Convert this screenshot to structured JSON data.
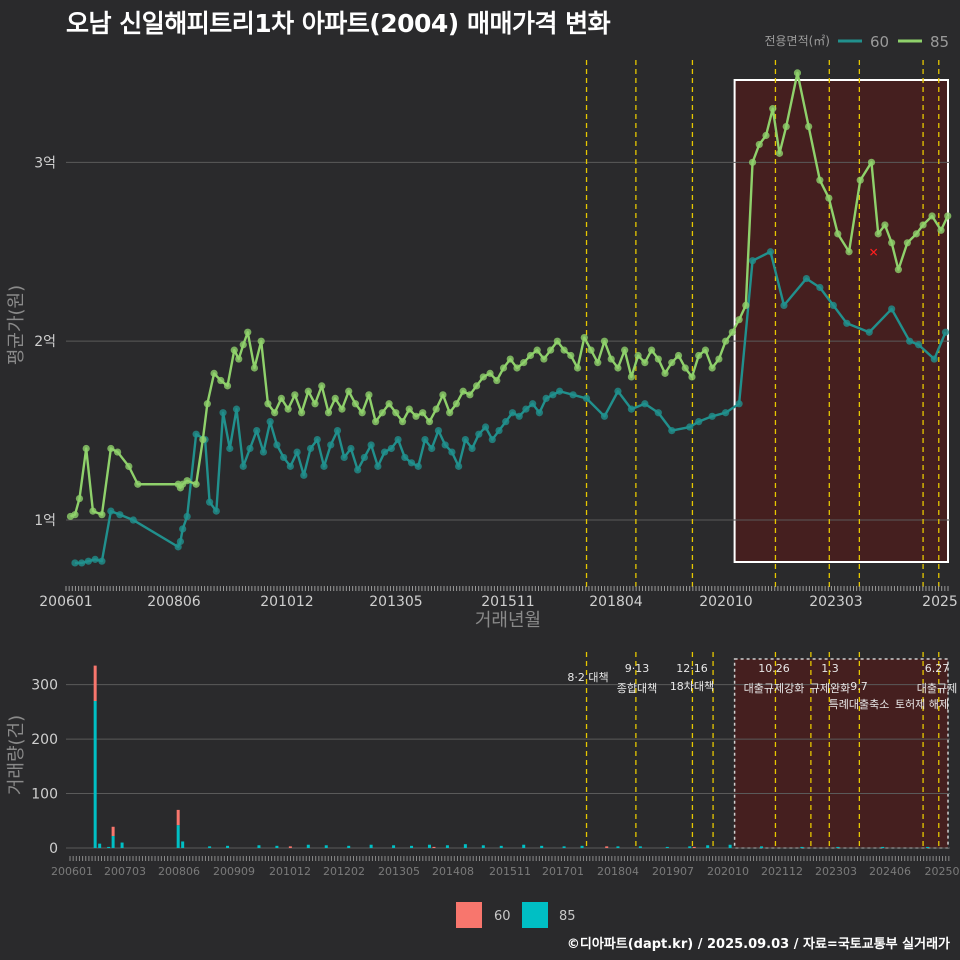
{
  "title": "오남 신일해피트리1차 아파트(2004) 매매가격 변화",
  "footer": "©디아파트(dapt.kr) / 2025.09.03 / 자료=국토교통부 실거래가",
  "colors": {
    "background": "#2a2a2c",
    "series60": "#21908d",
    "series85": "#8fd16b",
    "bar60": "#f8766d",
    "bar85": "#00bfc4",
    "policy": "#e6c700",
    "highlightFill": "#4a1d1d",
    "grid": "#5a5a5a",
    "axisText": "#cfcfcf",
    "marker": "#ff1e1e"
  },
  "chart_data": [
    {
      "type": "line",
      "title": "오남 신일해피트리1차 아파트(2004) 매매가격 변화",
      "xlabel": "거래년월",
      "ylabel": "평균가(원)",
      "x_tick_labels": [
        "200601",
        "200806",
        "201012",
        "201305",
        "201511",
        "201804",
        "202010",
        "202303",
        "2025"
      ],
      "y_tick_labels": [
        "1억",
        "2억",
        "3억"
      ],
      "y_ticks": [
        1,
        2,
        3
      ],
      "ylim": [
        0.62,
        3.6
      ],
      "xlim": [
        2006.0,
        2025.7
      ],
      "legend_title": "전용면적(㎡)",
      "legend": [
        "60",
        "85"
      ],
      "policy_dates": [
        2017.6,
        2018.7,
        2019.96,
        2021.81,
        2023.01,
        2023.68,
        2025.1,
        2025.45
      ],
      "highlight_range": [
        2020.9,
        2025.7
      ],
      "marker_point": [
        2024.0,
        2.5
      ],
      "series": [
        {
          "name": "60",
          "x": [
            2006.2,
            2006.35,
            2006.5,
            2006.65,
            2006.8,
            2007.0,
            2007.2,
            2007.5,
            2008.5,
            2008.55,
            2008.6,
            2008.7,
            2008.9,
            2009.1,
            2009.2,
            2009.35,
            2009.5,
            2009.65,
            2009.8,
            2009.95,
            2010.1,
            2010.25,
            2010.4,
            2010.55,
            2010.7,
            2010.85,
            2011.0,
            2011.15,
            2011.3,
            2011.45,
            2011.6,
            2011.75,
            2011.9,
            2012.05,
            2012.2,
            2012.35,
            2012.5,
            2012.65,
            2012.8,
            2012.95,
            2013.1,
            2013.25,
            2013.4,
            2013.55,
            2013.7,
            2013.85,
            2014.0,
            2014.15,
            2014.3,
            2014.45,
            2014.6,
            2014.75,
            2014.9,
            2015.05,
            2015.2,
            2015.35,
            2015.5,
            2015.65,
            2015.8,
            2015.95,
            2016.1,
            2016.25,
            2016.4,
            2016.55,
            2016.7,
            2016.85,
            2017.0,
            2017.3,
            2017.6,
            2018.0,
            2018.3,
            2018.6,
            2018.9,
            2019.2,
            2019.5,
            2019.9,
            2020.1,
            2020.4,
            2020.7,
            2021.0,
            2021.3,
            2021.7,
            2022.0,
            2022.5,
            2022.8,
            2023.1,
            2023.4,
            2023.9,
            2024.4,
            2024.8,
            2025.0,
            2025.35,
            2025.6
          ],
          "values": [
            0.76,
            0.76,
            0.77,
            0.78,
            0.77,
            1.05,
            1.03,
            1.0,
            0.85,
            0.88,
            0.95,
            1.02,
            1.48,
            1.45,
            1.1,
            1.05,
            1.6,
            1.4,
            1.62,
            1.3,
            1.4,
            1.5,
            1.38,
            1.55,
            1.42,
            1.35,
            1.3,
            1.38,
            1.25,
            1.4,
            1.45,
            1.3,
            1.42,
            1.5,
            1.35,
            1.4,
            1.28,
            1.35,
            1.42,
            1.3,
            1.38,
            1.4,
            1.45,
            1.35,
            1.32,
            1.3,
            1.45,
            1.4,
            1.5,
            1.42,
            1.38,
            1.3,
            1.45,
            1.4,
            1.48,
            1.52,
            1.45,
            1.5,
            1.55,
            1.6,
            1.58,
            1.62,
            1.65,
            1.6,
            1.68,
            1.7,
            1.72,
            1.7,
            1.68,
            1.58,
            1.72,
            1.62,
            1.65,
            1.6,
            1.5,
            1.52,
            1.55,
            1.58,
            1.6,
            1.65,
            2.45,
            2.5,
            2.2,
            2.35,
            2.3,
            2.2,
            2.1,
            2.05,
            2.18,
            2.0,
            1.98,
            1.9,
            2.05
          ]
        },
        {
          "name": "85",
          "x": [
            2006.1,
            2006.2,
            2006.3,
            2006.45,
            2006.6,
            2006.8,
            2007.0,
            2007.15,
            2007.4,
            2007.6,
            2008.5,
            2008.55,
            2008.6,
            2008.7,
            2008.9,
            2009.05,
            2009.15,
            2009.3,
            2009.45,
            2009.6,
            2009.75,
            2009.85,
            2009.95,
            2010.05,
            2010.2,
            2010.35,
            2010.5,
            2010.65,
            2010.8,
            2010.95,
            2011.1,
            2011.25,
            2011.4,
            2011.55,
            2011.7,
            2011.85,
            2012.0,
            2012.15,
            2012.3,
            2012.45,
            2012.6,
            2012.75,
            2012.9,
            2013.05,
            2013.2,
            2013.35,
            2013.5,
            2013.65,
            2013.8,
            2013.95,
            2014.1,
            2014.25,
            2014.4,
            2014.55,
            2014.7,
            2014.85,
            2015.0,
            2015.15,
            2015.3,
            2015.45,
            2015.6,
            2015.75,
            2015.9,
            2016.05,
            2016.2,
            2016.35,
            2016.5,
            2016.65,
            2016.8,
            2016.95,
            2017.1,
            2017.25,
            2017.4,
            2017.55,
            2017.7,
            2017.85,
            2018.0,
            2018.15,
            2018.3,
            2018.45,
            2018.6,
            2018.75,
            2018.9,
            2019.05,
            2019.2,
            2019.35,
            2019.5,
            2019.65,
            2019.8,
            2019.95,
            2020.1,
            2020.25,
            2020.4,
            2020.55,
            2020.7,
            2020.85,
            2021.0,
            2021.15,
            2021.3,
            2021.45,
            2021.6,
            2021.75,
            2021.9,
            2022.05,
            2022.3,
            2022.55,
            2022.8,
            2023.0,
            2023.2,
            2023.45,
            2023.7,
            2023.95,
            2024.1,
            2024.25,
            2024.4,
            2024.55,
            2024.75,
            2024.95,
            2025.1,
            2025.3,
            2025.5,
            2025.65
          ],
          "values": [
            1.02,
            1.03,
            1.12,
            1.4,
            1.05,
            1.03,
            1.4,
            1.38,
            1.3,
            1.2,
            1.2,
            1.18,
            1.2,
            1.22,
            1.2,
            1.45,
            1.65,
            1.82,
            1.78,
            1.75,
            1.95,
            1.9,
            1.98,
            2.05,
            1.85,
            2.0,
            1.65,
            1.6,
            1.68,
            1.62,
            1.7,
            1.6,
            1.72,
            1.65,
            1.75,
            1.6,
            1.68,
            1.62,
            1.72,
            1.65,
            1.6,
            1.7,
            1.55,
            1.6,
            1.65,
            1.6,
            1.55,
            1.62,
            1.58,
            1.6,
            1.55,
            1.62,
            1.7,
            1.6,
            1.65,
            1.72,
            1.7,
            1.75,
            1.8,
            1.82,
            1.78,
            1.85,
            1.9,
            1.85,
            1.88,
            1.92,
            1.95,
            1.9,
            1.95,
            2.0,
            1.95,
            1.92,
            1.85,
            2.02,
            1.95,
            1.88,
            2.0,
            1.9,
            1.85,
            1.95,
            1.8,
            1.92,
            1.88,
            1.95,
            1.9,
            1.82,
            1.88,
            1.92,
            1.85,
            1.8,
            1.92,
            1.95,
            1.85,
            1.9,
            2.0,
            2.05,
            2.12,
            2.2,
            3.0,
            3.1,
            3.15,
            3.3,
            3.05,
            3.2,
            3.5,
            3.2,
            2.9,
            2.8,
            2.6,
            2.5,
            2.9,
            3.0,
            2.6,
            2.65,
            2.55,
            2.4,
            2.55,
            2.6,
            2.65,
            2.7,
            2.62,
            2.7
          ]
        }
      ]
    },
    {
      "type": "bar",
      "ylabel": "거래량(건)",
      "x_tick_labels": [
        "200601",
        "200703",
        "200806",
        "200909",
        "201012",
        "201202",
        "201305",
        "201408",
        "201511",
        "201701",
        "201804",
        "201907",
        "202010",
        "202112",
        "202303",
        "202406",
        "20250"
      ],
      "y_ticks": [
        0,
        100,
        200,
        300
      ],
      "ylim": [
        0,
        360
      ],
      "legend": [
        "60",
        "85"
      ],
      "series": [
        {
          "name": "60",
          "x": [
            2006.65,
            2007.05,
            2008.5,
            2011.0,
            2014.2,
            2018.05,
            2020.0
          ],
          "values": [
            65,
            17,
            28,
            3,
            2,
            3,
            2
          ]
        },
        {
          "name": "85",
          "x": [
            2006.65,
            2006.75,
            2006.95,
            2007.05,
            2007.25,
            2008.5,
            2008.6,
            2009.2,
            2009.6,
            2010.3,
            2010.7,
            2011.4,
            2011.8,
            2012.3,
            2012.8,
            2013.3,
            2013.7,
            2014.1,
            2014.5,
            2014.9,
            2015.3,
            2015.7,
            2016.2,
            2016.6,
            2017.1,
            2017.5,
            2018.3,
            2018.8,
            2019.4,
            2019.9,
            2020.3,
            2020.8,
            2021.5,
            2022.4,
            2023.2,
            2024.2,
            2025.2
          ],
          "values": [
            270,
            8,
            2,
            22,
            10,
            42,
            12,
            3,
            4,
            5,
            4,
            6,
            5,
            4,
            6,
            5,
            4,
            6,
            5,
            7,
            5,
            4,
            6,
            4,
            3,
            4,
            3,
            3,
            2,
            3,
            5,
            6,
            3,
            2,
            2,
            2,
            2
          ]
        }
      ],
      "policy_dates": [
        2017.6,
        2018.7,
        2019.96,
        2020.42,
        2021.81,
        2022.6,
        2023.01,
        2023.68,
        2025.1,
        2025.45
      ],
      "policy_labels": [
        {
          "date": "8·2 대책",
          "text": ""
        },
        {
          "date": "9·13",
          "text": "종합대책"
        },
        {
          "date": "12·16",
          "text": "18차대책"
        },
        {
          "date": "10.26",
          "text": "대출규제강화"
        },
        {
          "date": "1.3",
          "text": "규제완화"
        },
        {
          "date": "9.7",
          "text": "특례대출축소"
        },
        {
          "date": "",
          "text": "토허제 해제"
        },
        {
          "date": "6.27",
          "text": "대출규제"
        }
      ],
      "highlight_range": [
        2020.9,
        2025.7
      ]
    }
  ]
}
